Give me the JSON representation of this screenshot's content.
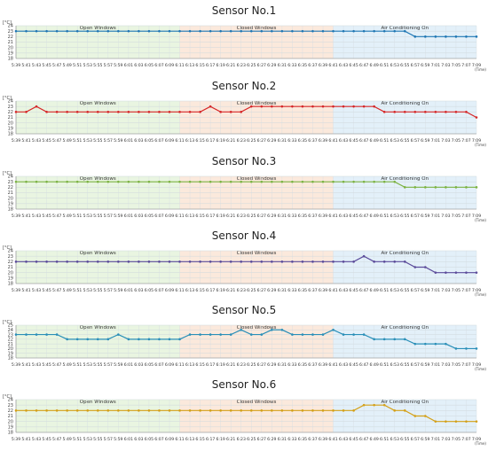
{
  "chart_data": [
    {
      "type": "line",
      "title": "Sensor No.1",
      "ylabel": "[°C]",
      "xlabel": "(Time)",
      "ylim": [
        18,
        24
      ],
      "color": "#1f77b4",
      "categories": [
        "5:39",
        "5:41",
        "5:43",
        "5:45",
        "5:47",
        "5:49",
        "5:51",
        "5:53",
        "5:55",
        "5:57",
        "5:59",
        "6:01",
        "6:03",
        "6:05",
        "6:07",
        "6:09",
        "6:11",
        "6:13",
        "6:15",
        "6:17",
        "6:19",
        "6:21",
        "6:23",
        "6:25",
        "6:27",
        "6:29",
        "6:31",
        "6:33",
        "6:35",
        "6:37",
        "6:39",
        "6:41",
        "6:43",
        "6:45",
        "6:47",
        "6:49",
        "6:51",
        "6:53",
        "6:55",
        "6:57",
        "6:59",
        "7:01",
        "7:03",
        "7:05",
        "7:07",
        "7:09"
      ],
      "values": [
        23,
        23,
        23,
        23,
        23,
        23,
        23,
        23,
        23,
        23,
        23,
        23,
        23,
        23,
        23,
        23,
        23,
        23,
        23,
        23,
        23,
        23,
        23,
        23,
        23,
        23,
        23,
        23,
        23,
        23,
        23,
        23,
        23,
        23,
        23,
        23,
        23,
        23,
        23,
        22,
        22,
        22,
        22,
        22,
        22,
        22
      ],
      "regions": [
        {
          "label": "Open Windows",
          "start": 0,
          "end": 16,
          "color": "#e9f5e1"
        },
        {
          "label": "Closed Windows",
          "start": 16,
          "end": 31,
          "color": "#fbe9dc"
        },
        {
          "label": "Air Conditioning On",
          "start": 31,
          "end": 45,
          "color": "#e3f0f9"
        }
      ]
    },
    {
      "type": "line",
      "title": "Sensor No.2",
      "ylabel": "[°C]",
      "xlabel": "(Time)",
      "ylim": [
        18,
        24
      ],
      "color": "#d62728",
      "categories": [
        "5:39",
        "5:41",
        "5:43",
        "5:45",
        "5:47",
        "5:49",
        "5:51",
        "5:53",
        "5:55",
        "5:57",
        "5:59",
        "6:01",
        "6:03",
        "6:05",
        "6:07",
        "6:09",
        "6:11",
        "6:13",
        "6:15",
        "6:17",
        "6:19",
        "6:21",
        "6:23",
        "6:25",
        "6:27",
        "6:29",
        "6:31",
        "6:33",
        "6:35",
        "6:37",
        "6:39",
        "6:41",
        "6:43",
        "6:45",
        "6:47",
        "6:49",
        "6:51",
        "6:53",
        "6:55",
        "6:57",
        "6:59",
        "7:01",
        "7:03",
        "7:05",
        "7:07",
        "7:09"
      ],
      "values": [
        22,
        22,
        23,
        22,
        22,
        22,
        22,
        22,
        22,
        22,
        22,
        22,
        22,
        22,
        22,
        22,
        22,
        22,
        22,
        23,
        22,
        22,
        22,
        23,
        23,
        23,
        23,
        23,
        23,
        23,
        23,
        23,
        23,
        23,
        23,
        23,
        22,
        22,
        22,
        22,
        22,
        22,
        22,
        22,
        22,
        21
      ],
      "regions": [
        {
          "label": "Open Windows",
          "start": 0,
          "end": 16,
          "color": "#e9f5e1"
        },
        {
          "label": "Closed Windows",
          "start": 16,
          "end": 31,
          "color": "#fbe9dc"
        },
        {
          "label": "Air Conditioning On",
          "start": 31,
          "end": 45,
          "color": "#e3f0f9"
        }
      ]
    },
    {
      "type": "line",
      "title": "Sensor No.3",
      "ylabel": "[°C]",
      "xlabel": "(Time)",
      "ylim": [
        18,
        24
      ],
      "color": "#7cb342",
      "categories": [
        "5:39",
        "5:41",
        "5:43",
        "5:45",
        "5:47",
        "5:49",
        "5:51",
        "5:53",
        "5:55",
        "5:57",
        "5:59",
        "6:01",
        "6:03",
        "6:05",
        "6:07",
        "6:09",
        "6:11",
        "6:13",
        "6:15",
        "6:17",
        "6:19",
        "6:21",
        "6:23",
        "6:25",
        "6:27",
        "6:29",
        "6:31",
        "6:33",
        "6:35",
        "6:37",
        "6:39",
        "6:41",
        "6:43",
        "6:45",
        "6:47",
        "6:49",
        "6:51",
        "6:53",
        "6:55",
        "6:57",
        "6:59",
        "7:01",
        "7:03",
        "7:05",
        "7:07",
        "7:09"
      ],
      "values": [
        23,
        23,
        23,
        23,
        23,
        23,
        23,
        23,
        23,
        23,
        23,
        23,
        23,
        23,
        23,
        23,
        23,
        23,
        23,
        23,
        23,
        23,
        23,
        23,
        23,
        23,
        23,
        23,
        23,
        23,
        23,
        23,
        23,
        23,
        23,
        23,
        23,
        23,
        22,
        22,
        22,
        22,
        22,
        22,
        22,
        22
      ],
      "regions": [
        {
          "label": "Open Windows",
          "start": 0,
          "end": 16,
          "color": "#e9f5e1"
        },
        {
          "label": "Closed Windows",
          "start": 16,
          "end": 31,
          "color": "#fbe9dc"
        },
        {
          "label": "Air Conditioning On",
          "start": 31,
          "end": 45,
          "color": "#e3f0f9"
        }
      ]
    },
    {
      "type": "line",
      "title": "Sensor No.4",
      "ylabel": "[°C]",
      "xlabel": "(Time)",
      "ylim": [
        18,
        24
      ],
      "color": "#5b4b9a",
      "categories": [
        "5:39",
        "5:41",
        "5:43",
        "5:45",
        "5:47",
        "5:49",
        "5:51",
        "5:53",
        "5:55",
        "5:57",
        "5:59",
        "6:01",
        "6:03",
        "6:05",
        "6:07",
        "6:09",
        "6:11",
        "6:13",
        "6:15",
        "6:17",
        "6:19",
        "6:21",
        "6:23",
        "6:25",
        "6:27",
        "6:29",
        "6:31",
        "6:33",
        "6:35",
        "6:37",
        "6:39",
        "6:41",
        "6:43",
        "6:45",
        "6:47",
        "6:49",
        "6:51",
        "6:53",
        "6:55",
        "6:57",
        "6:59",
        "7:01",
        "7:03",
        "7:05",
        "7:07",
        "7:09"
      ],
      "values": [
        22,
        22,
        22,
        22,
        22,
        22,
        22,
        22,
        22,
        22,
        22,
        22,
        22,
        22,
        22,
        22,
        22,
        22,
        22,
        22,
        22,
        22,
        22,
        22,
        22,
        22,
        22,
        22,
        22,
        22,
        22,
        22,
        22,
        22,
        23,
        22,
        22,
        22,
        22,
        21,
        21,
        20,
        20,
        20,
        20,
        20
      ],
      "regions": [
        {
          "label": "Open Windows",
          "start": 0,
          "end": 16,
          "color": "#e9f5e1"
        },
        {
          "label": "Closed Windows",
          "start": 16,
          "end": 31,
          "color": "#fbe9dc"
        },
        {
          "label": "Air Conditioning On",
          "start": 31,
          "end": 45,
          "color": "#e3f0f9"
        }
      ]
    },
    {
      "type": "line",
      "title": "Sensor No.5",
      "ylabel": "[°C]",
      "xlabel": "(Time)",
      "ylim": [
        18,
        25
      ],
      "color": "#2a8fb8",
      "categories": [
        "5:39",
        "5:41",
        "5:43",
        "5:45",
        "5:47",
        "5:49",
        "5:51",
        "5:53",
        "5:55",
        "5:57",
        "5:59",
        "6:01",
        "6:03",
        "6:05",
        "6:07",
        "6:09",
        "6:11",
        "6:13",
        "6:15",
        "6:17",
        "6:19",
        "6:21",
        "6:23",
        "6:25",
        "6:27",
        "6:29",
        "6:31",
        "6:33",
        "6:35",
        "6:37",
        "6:39",
        "6:41",
        "6:43",
        "6:45",
        "6:47",
        "6:49",
        "6:51",
        "6:53",
        "6:55",
        "6:57",
        "6:59",
        "7:01",
        "7:03",
        "7:05",
        "7:07",
        "7:09"
      ],
      "values": [
        23,
        23,
        23,
        23,
        23,
        22,
        22,
        22,
        22,
        22,
        23,
        22,
        22,
        22,
        22,
        22,
        22,
        23,
        23,
        23,
        23,
        23,
        24,
        23,
        23,
        24,
        24,
        23,
        23,
        23,
        23,
        24,
        23,
        23,
        23,
        22,
        22,
        22,
        22,
        21,
        21,
        21,
        21,
        20,
        20,
        20
      ],
      "regions": [
        {
          "label": "Open Windows",
          "start": 0,
          "end": 16,
          "color": "#e9f5e1"
        },
        {
          "label": "Closed Windows",
          "start": 16,
          "end": 31,
          "color": "#fbe9dc"
        },
        {
          "label": "Air Conditioning On",
          "start": 31,
          "end": 45,
          "color": "#e3f0f9"
        }
      ]
    },
    {
      "type": "line",
      "title": "Sensor No.6",
      "ylabel": "[°C]",
      "xlabel": "(Time)",
      "ylim": [
        18,
        24
      ],
      "color": "#d4a017",
      "categories": [
        "5:39",
        "5:41",
        "5:43",
        "5:45",
        "5:47",
        "5:49",
        "5:51",
        "5:53",
        "5:55",
        "5:57",
        "5:59",
        "6:01",
        "6:03",
        "6:05",
        "6:07",
        "6:09",
        "6:11",
        "6:13",
        "6:15",
        "6:17",
        "6:19",
        "6:21",
        "6:23",
        "6:25",
        "6:27",
        "6:29",
        "6:31",
        "6:33",
        "6:35",
        "6:37",
        "6:39",
        "6:41",
        "6:43",
        "6:45",
        "6:47",
        "6:49",
        "6:51",
        "6:53",
        "6:55",
        "6:57",
        "6:59",
        "7:01",
        "7:03",
        "7:05",
        "7:07",
        "7:09"
      ],
      "values": [
        22,
        22,
        22,
        22,
        22,
        22,
        22,
        22,
        22,
        22,
        22,
        22,
        22,
        22,
        22,
        22,
        22,
        22,
        22,
        22,
        22,
        22,
        22,
        22,
        22,
        22,
        22,
        22,
        22,
        22,
        22,
        22,
        22,
        22,
        23,
        23,
        23,
        22,
        22,
        21,
        21,
        20,
        20,
        20,
        20,
        20
      ],
      "regions": [
        {
          "label": "Open Windows",
          "start": 0,
          "end": 16,
          "color": "#e9f5e1"
        },
        {
          "label": "Closed Windows",
          "start": 16,
          "end": 31,
          "color": "#fbe9dc"
        },
        {
          "label": "Air Conditioning On",
          "start": 31,
          "end": 45,
          "color": "#e3f0f9"
        }
      ]
    }
  ]
}
